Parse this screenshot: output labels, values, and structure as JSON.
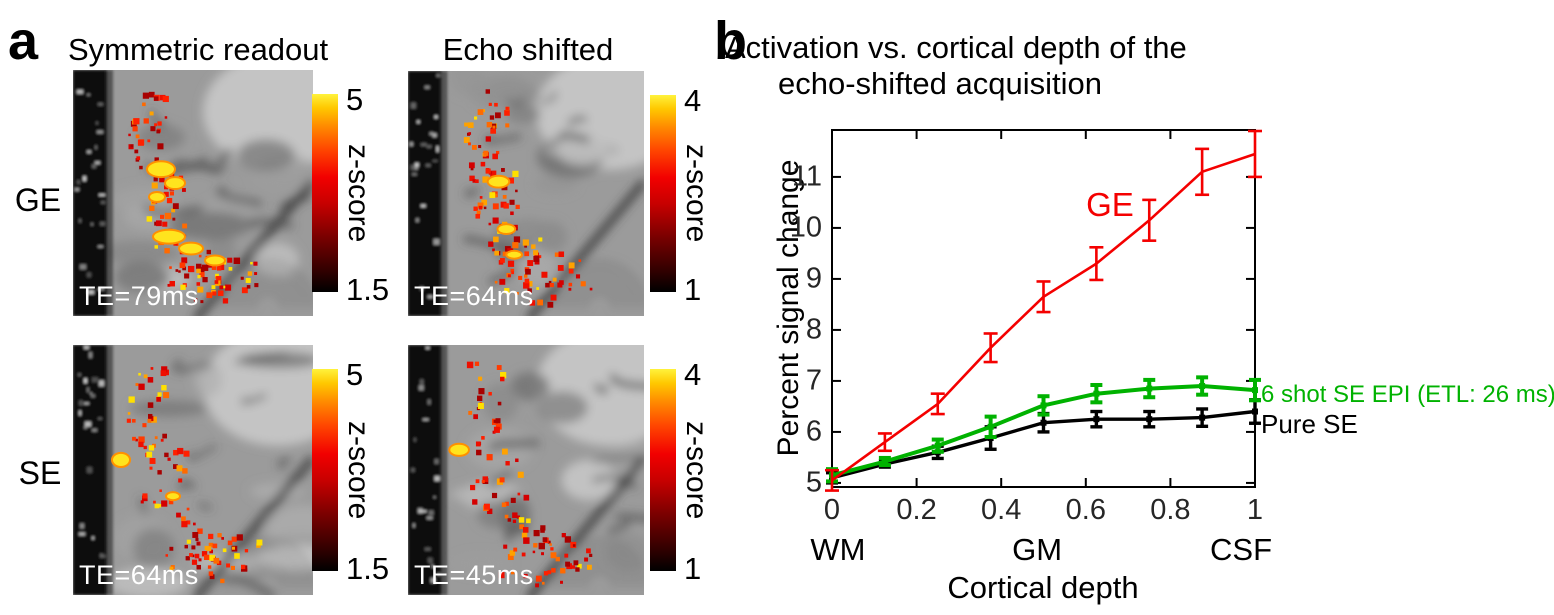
{
  "panel_a": {
    "label": "a",
    "column_titles": [
      "Symmetric readout",
      "Echo shifted"
    ],
    "row_labels": [
      "GE",
      "SE"
    ],
    "colorbar_label": "z-score",
    "maps": [
      {
        "row": "GE",
        "column": "Symmetric readout",
        "te_label": "TE=79ms",
        "colorbar_max": "5",
        "colorbar_min": "1.5"
      },
      {
        "row": "GE",
        "column": "Echo shifted",
        "te_label": "TE=64ms",
        "colorbar_max": "4",
        "colorbar_min": "1"
      },
      {
        "row": "SE",
        "column": "Symmetric readout",
        "te_label": "TE=64ms",
        "colorbar_max": "5",
        "colorbar_min": "1.5"
      },
      {
        "row": "SE",
        "column": "Echo shifted",
        "te_label": "TE=45ms",
        "colorbar_max": "4",
        "colorbar_min": "1"
      }
    ]
  },
  "panel_b": {
    "label": "b",
    "title_line1": "Activation vs. cortical depth of the",
    "title_line2": "echo-shifted acquisition"
  },
  "chart_data": {
    "type": "line",
    "title": "Activation vs. cortical depth of the echo-shifted acquisition",
    "xlabel": "Cortical depth",
    "ylabel": "Percent signal change",
    "xlim": [
      0,
      1
    ],
    "ylim": [
      4.92,
      11.92
    ],
    "grid": false,
    "x_ticks": [
      "0",
      "0.2",
      "0.4",
      "0.6",
      "0.8",
      "1"
    ],
    "y_ticks": [
      5,
      6,
      7,
      8,
      9,
      10,
      11
    ],
    "x": [
      0,
      0.125,
      0.25,
      0.375,
      0.5,
      0.625,
      0.75,
      0.875,
      1
    ],
    "series": [
      {
        "name": "GE",
        "color": "#f40000",
        "marker": "none",
        "line_width": 2.6,
        "values": [
          5.05,
          5.8,
          6.55,
          7.65,
          8.65,
          9.3,
          10.15,
          11.1,
          11.45
        ],
        "errors": [
          0.2,
          0.17,
          0.2,
          0.28,
          0.3,
          0.32,
          0.4,
          0.45,
          0.45
        ],
        "label_style": "inline",
        "inline_label": {
          "x": 0.657,
          "y": 10.45
        }
      },
      {
        "name": "6 shot SE EPI (ETL: 26 ms)",
        "color": "#00b200",
        "marker": "square",
        "line_width": 4,
        "values": [
          5.15,
          5.42,
          5.73,
          6.1,
          6.52,
          6.75,
          6.85,
          6.9,
          6.82
        ],
        "errors": [
          0.12,
          0.07,
          0.12,
          0.2,
          0.18,
          0.17,
          0.17,
          0.17,
          0.2
        ],
        "label_style": "right"
      },
      {
        "name": "Pure SE",
        "color": "#000000",
        "marker": "square",
        "line_width": 3.4,
        "values": [
          5.1,
          5.37,
          5.6,
          5.88,
          6.18,
          6.25,
          6.25,
          6.28,
          6.4
        ],
        "errors": [
          0.1,
          0.06,
          0.12,
          0.22,
          0.18,
          0.15,
          0.15,
          0.17,
          0.23
        ],
        "label_style": "right"
      }
    ],
    "region_labels": [
      {
        "text": "WM",
        "x": 0.014
      },
      {
        "text": "GM",
        "x": 0.485
      },
      {
        "text": "CSF",
        "x": 0.967
      }
    ],
    "legend_position": "right"
  }
}
